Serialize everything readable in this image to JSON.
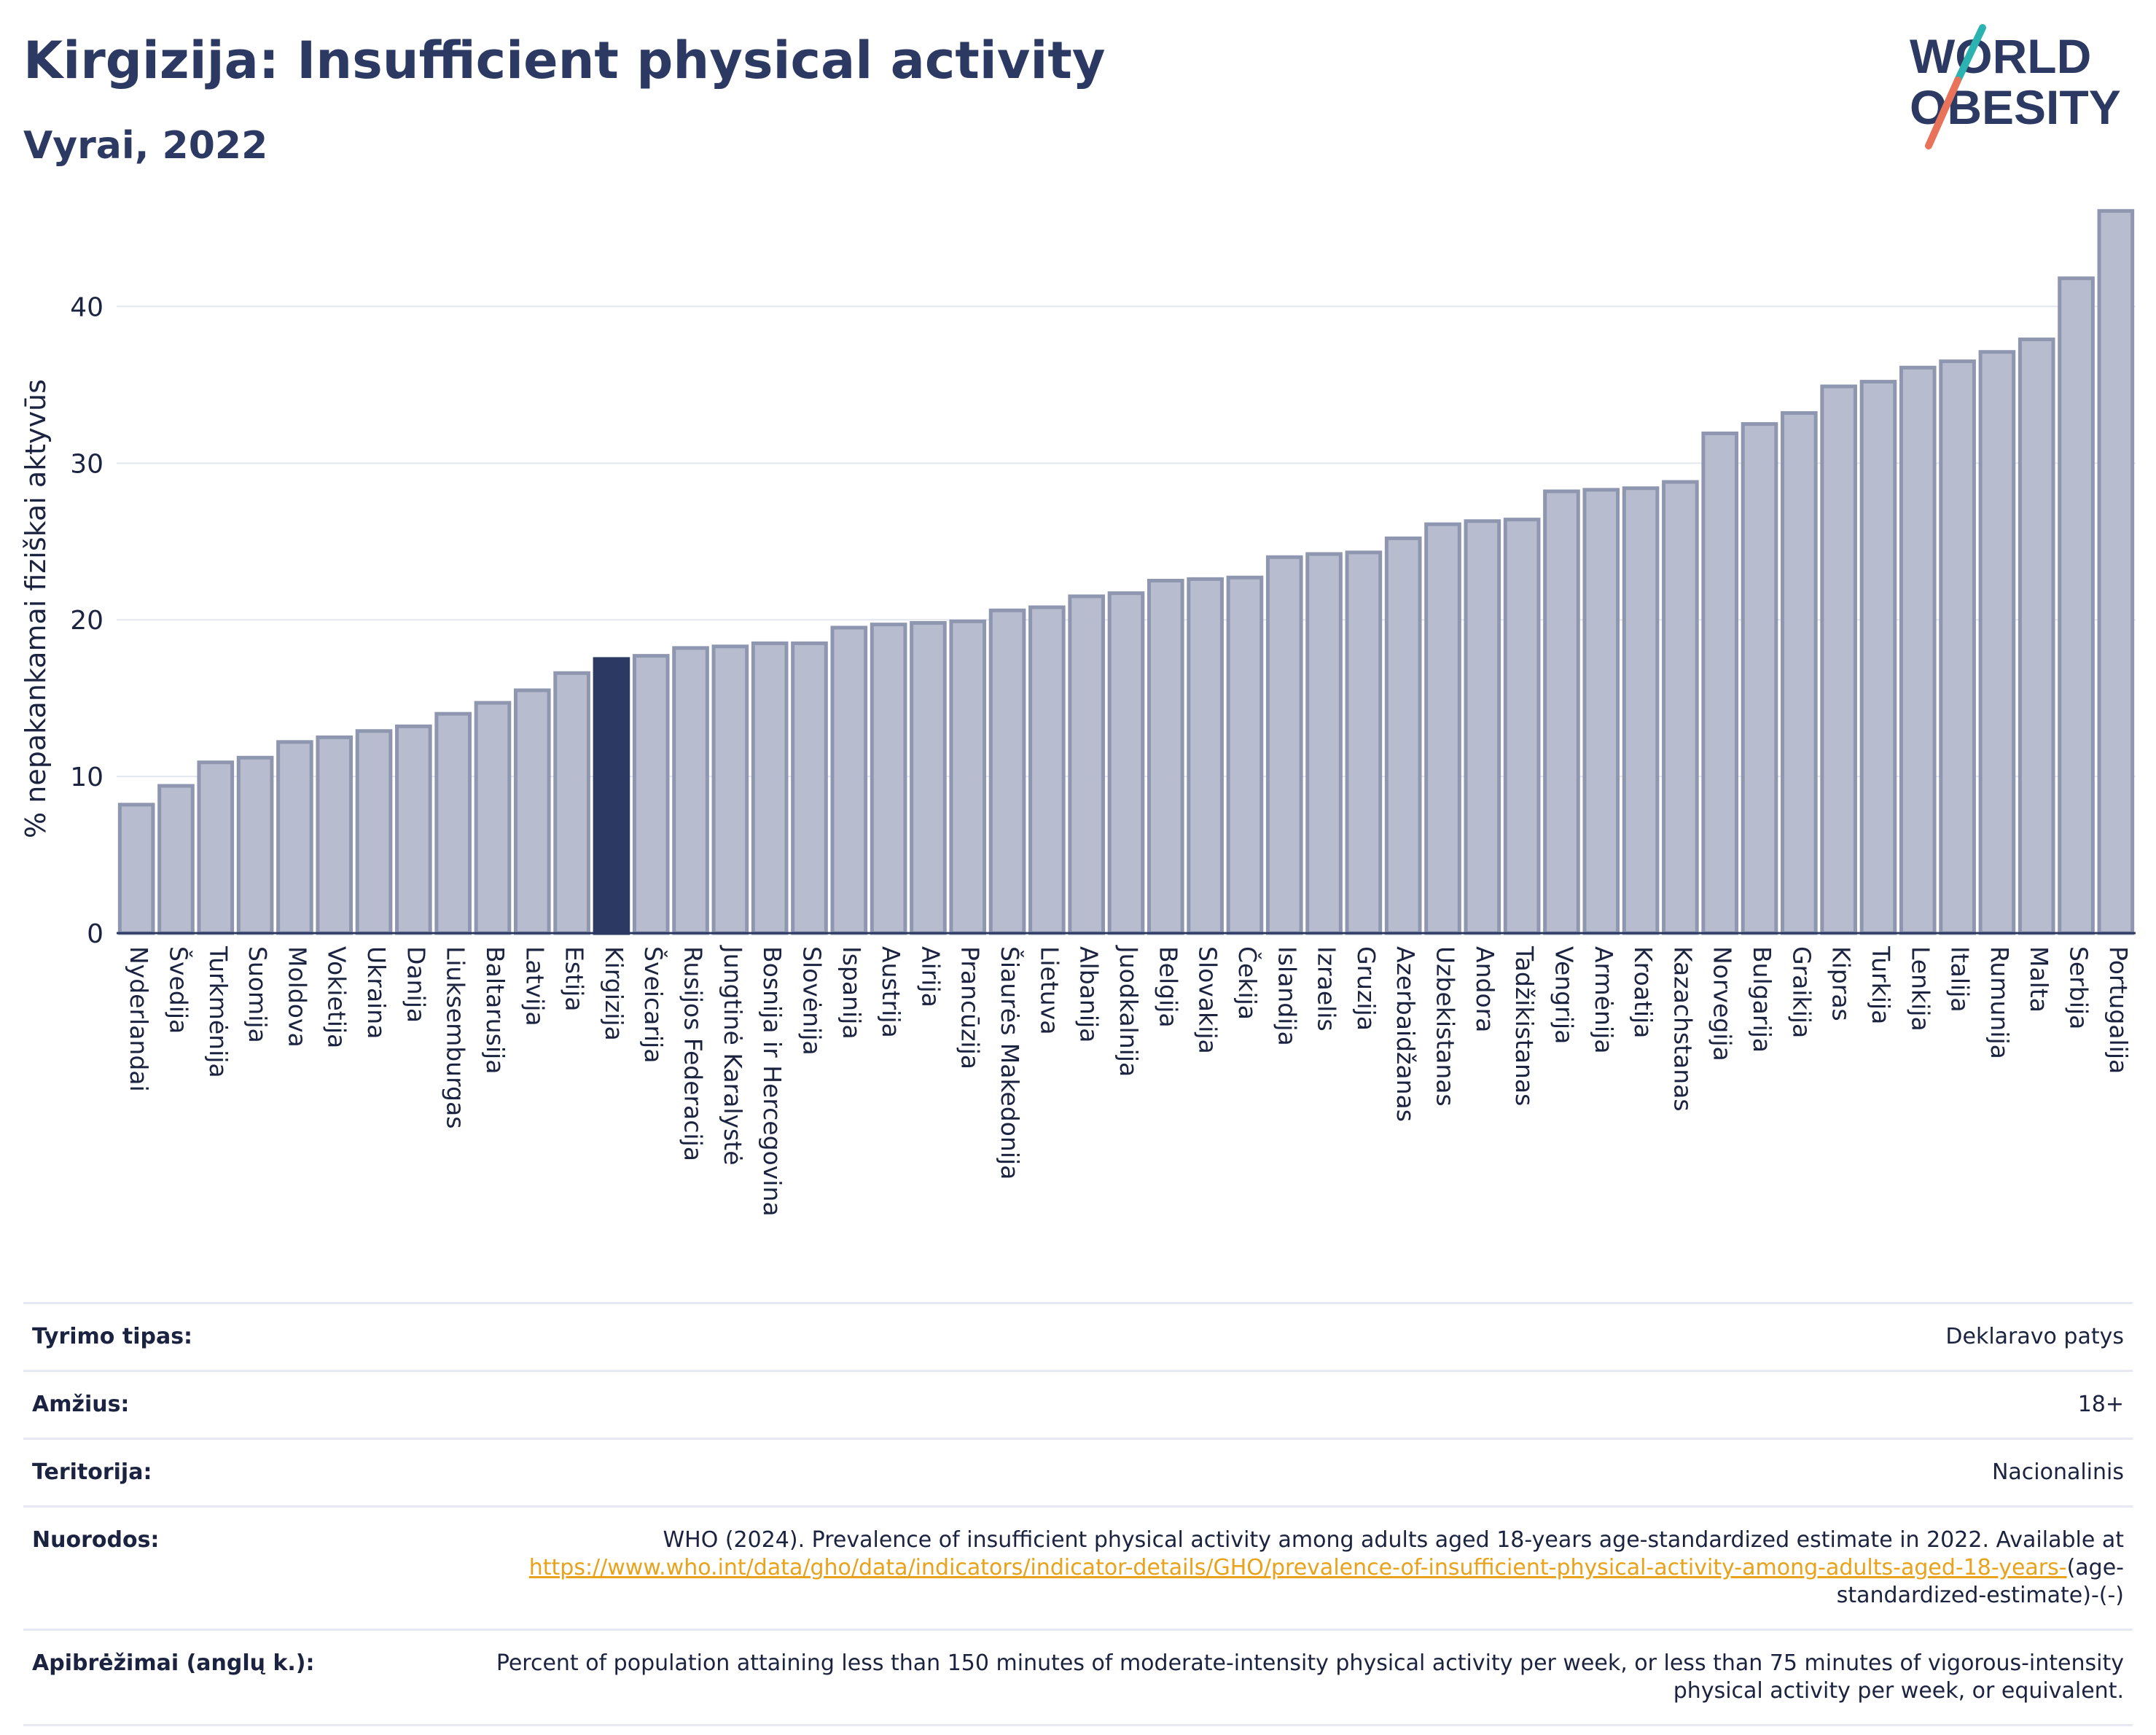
{
  "header": {
    "title": "Kirgizija: Insufficient physical activity",
    "subtitle": "Vyrai, 2022"
  },
  "logo": {
    "line1": "WORLD",
    "line2": "OBESITY",
    "slash_colors": [
      "#2bb3b1",
      "#e8735a"
    ],
    "text_color": "#2c3a63"
  },
  "colors": {
    "bar": "#b7bdcf",
    "bar_border": "#8e96b0",
    "highlight": "#2c3a63",
    "grid": "#e3e6ef",
    "axis_text": "#1b2340"
  },
  "chart_data": {
    "type": "bar",
    "title": "",
    "ylabel": "% nepakankamai fiziškai aktyvūs",
    "xlabel": "",
    "ylim": [
      0,
      47
    ],
    "yticks": [
      0,
      10,
      20,
      30,
      40
    ],
    "grid": true,
    "highlight": "Kirgizija",
    "categories": [
      "Nyderlandai",
      "Švedija",
      "Turkmėnija",
      "Suomija",
      "Moldova",
      "Vokietija",
      "Ukraina",
      "Danija",
      "Liuksemburgas",
      "Baltarusija",
      "Latvija",
      "Estija",
      "Kirgizija",
      "Šveicarija",
      "Rusijos Federacija",
      "Jungtinė Karalystė",
      "Bosnija ir Hercegovina",
      "Slovėnija",
      "Ispanija",
      "Austrija",
      "Airija",
      "Prancūzija",
      "Šiaurės Makedonija",
      "Lietuva",
      "Albanija",
      "Juodkalnija",
      "Belgija",
      "Slovakija",
      "Čekija",
      "Islandija",
      "Izraelis",
      "Gruzija",
      "Azerbaidžanas",
      "Uzbekistanas",
      "Andora",
      "Tadžikistanas",
      "Vengrija",
      "Armėnija",
      "Kroatija",
      "Kazachstanas",
      "Norvegija",
      "Bulgarija",
      "Graikija",
      "Kipras",
      "Turkija",
      "Lenkija",
      "Italija",
      "Rumunija",
      "Malta",
      "Serbija",
      "Portugalija"
    ],
    "values": [
      8.2,
      9.4,
      10.9,
      11.2,
      12.2,
      12.5,
      12.9,
      13.2,
      14.0,
      14.7,
      15.5,
      16.6,
      17.5,
      17.7,
      18.2,
      18.3,
      18.5,
      18.5,
      19.5,
      19.7,
      19.8,
      19.9,
      20.6,
      20.8,
      21.5,
      21.7,
      22.5,
      22.6,
      22.7,
      24.0,
      24.2,
      24.3,
      25.2,
      26.1,
      26.3,
      26.4,
      28.2,
      28.3,
      28.4,
      28.8,
      31.9,
      32.5,
      33.2,
      34.9,
      35.2,
      36.1,
      36.5,
      37.1,
      37.9,
      41.8,
      46.1
    ]
  },
  "meta": {
    "rows": [
      {
        "label": "Tyrimo tipas:",
        "value": "Deklaravo patys"
      },
      {
        "label": "Amžius:",
        "value": "18+"
      },
      {
        "label": "Teritorija:",
        "value": "Nacionalinis"
      }
    ],
    "references_label": "Nuorodos:",
    "references_text": "WHO (2024). Prevalence of insufficient physical activity among adults aged 18-years age-standardized estimate in 2022. Available at",
    "references_link": "https://www.who.int/data/gho/data/indicators/indicator-details/GHO/prevalence-of-insufficient-physical-activity-among-adults-aged-18-years-",
    "references_suffix": "(age-standardized-estimate)-(-)",
    "definitions_label": "Apibrėžimai (anglų k.):",
    "definitions_text": "Percent of population attaining less than 150 minutes of moderate-intensity physical activity per week, or less than 75 minutes of vigorous-intensity physical activity per week, or equivalent."
  }
}
